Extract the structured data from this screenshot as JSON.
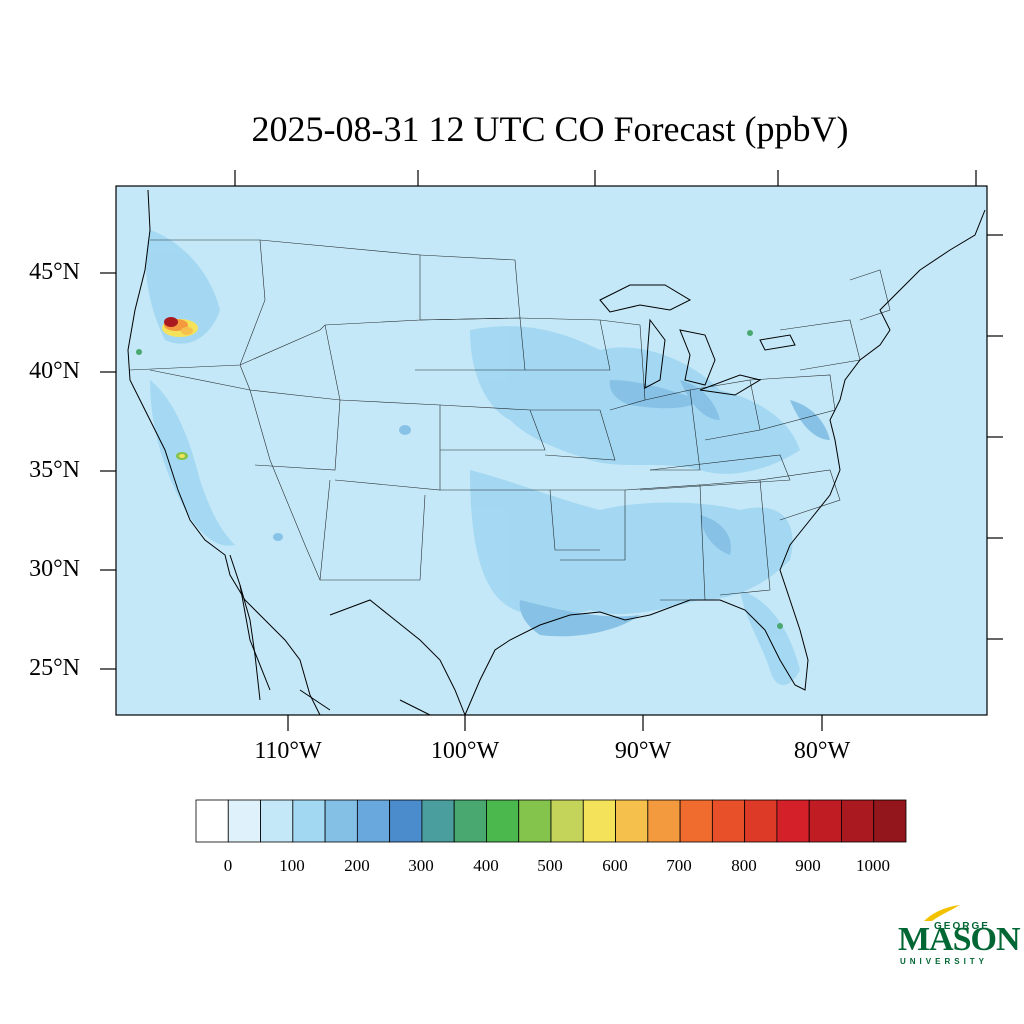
{
  "title": "2025-08-31 12 UTC CO Forecast (ppbV)",
  "map": {
    "variable": "CO",
    "units": "ppbV",
    "region": "Continental United States",
    "lat_labels": [
      "45°N",
      "40°N",
      "35°N",
      "30°N",
      "25°N"
    ],
    "lon_labels": [
      "110°W",
      "100°W",
      "90°W",
      "80°W"
    ],
    "background_value_color": "#c4e8f8"
  },
  "colorbar": {
    "labels": [
      "0",
      "100",
      "200",
      "300",
      "400",
      "500",
      "600",
      "700",
      "800",
      "900",
      "1000"
    ],
    "colors": [
      "#ffffff",
      "#dff2fb",
      "#c4e8f8",
      "#a3d8f2",
      "#84c0e6",
      "#68a8dc",
      "#4a8ccc",
      "#4a9e9e",
      "#48a870",
      "#4ab84c",
      "#84c44c",
      "#c4d45a",
      "#f4e25a",
      "#f6c04c",
      "#f49a3e",
      "#f06c2e",
      "#e8502a",
      "#de3a28",
      "#d42028",
      "#c01c24",
      "#aa1820",
      "#92161c"
    ]
  },
  "logo": {
    "top": "GEORGE",
    "main": "MASON",
    "bottom": "UNIVERSITY",
    "color": "#006633"
  }
}
